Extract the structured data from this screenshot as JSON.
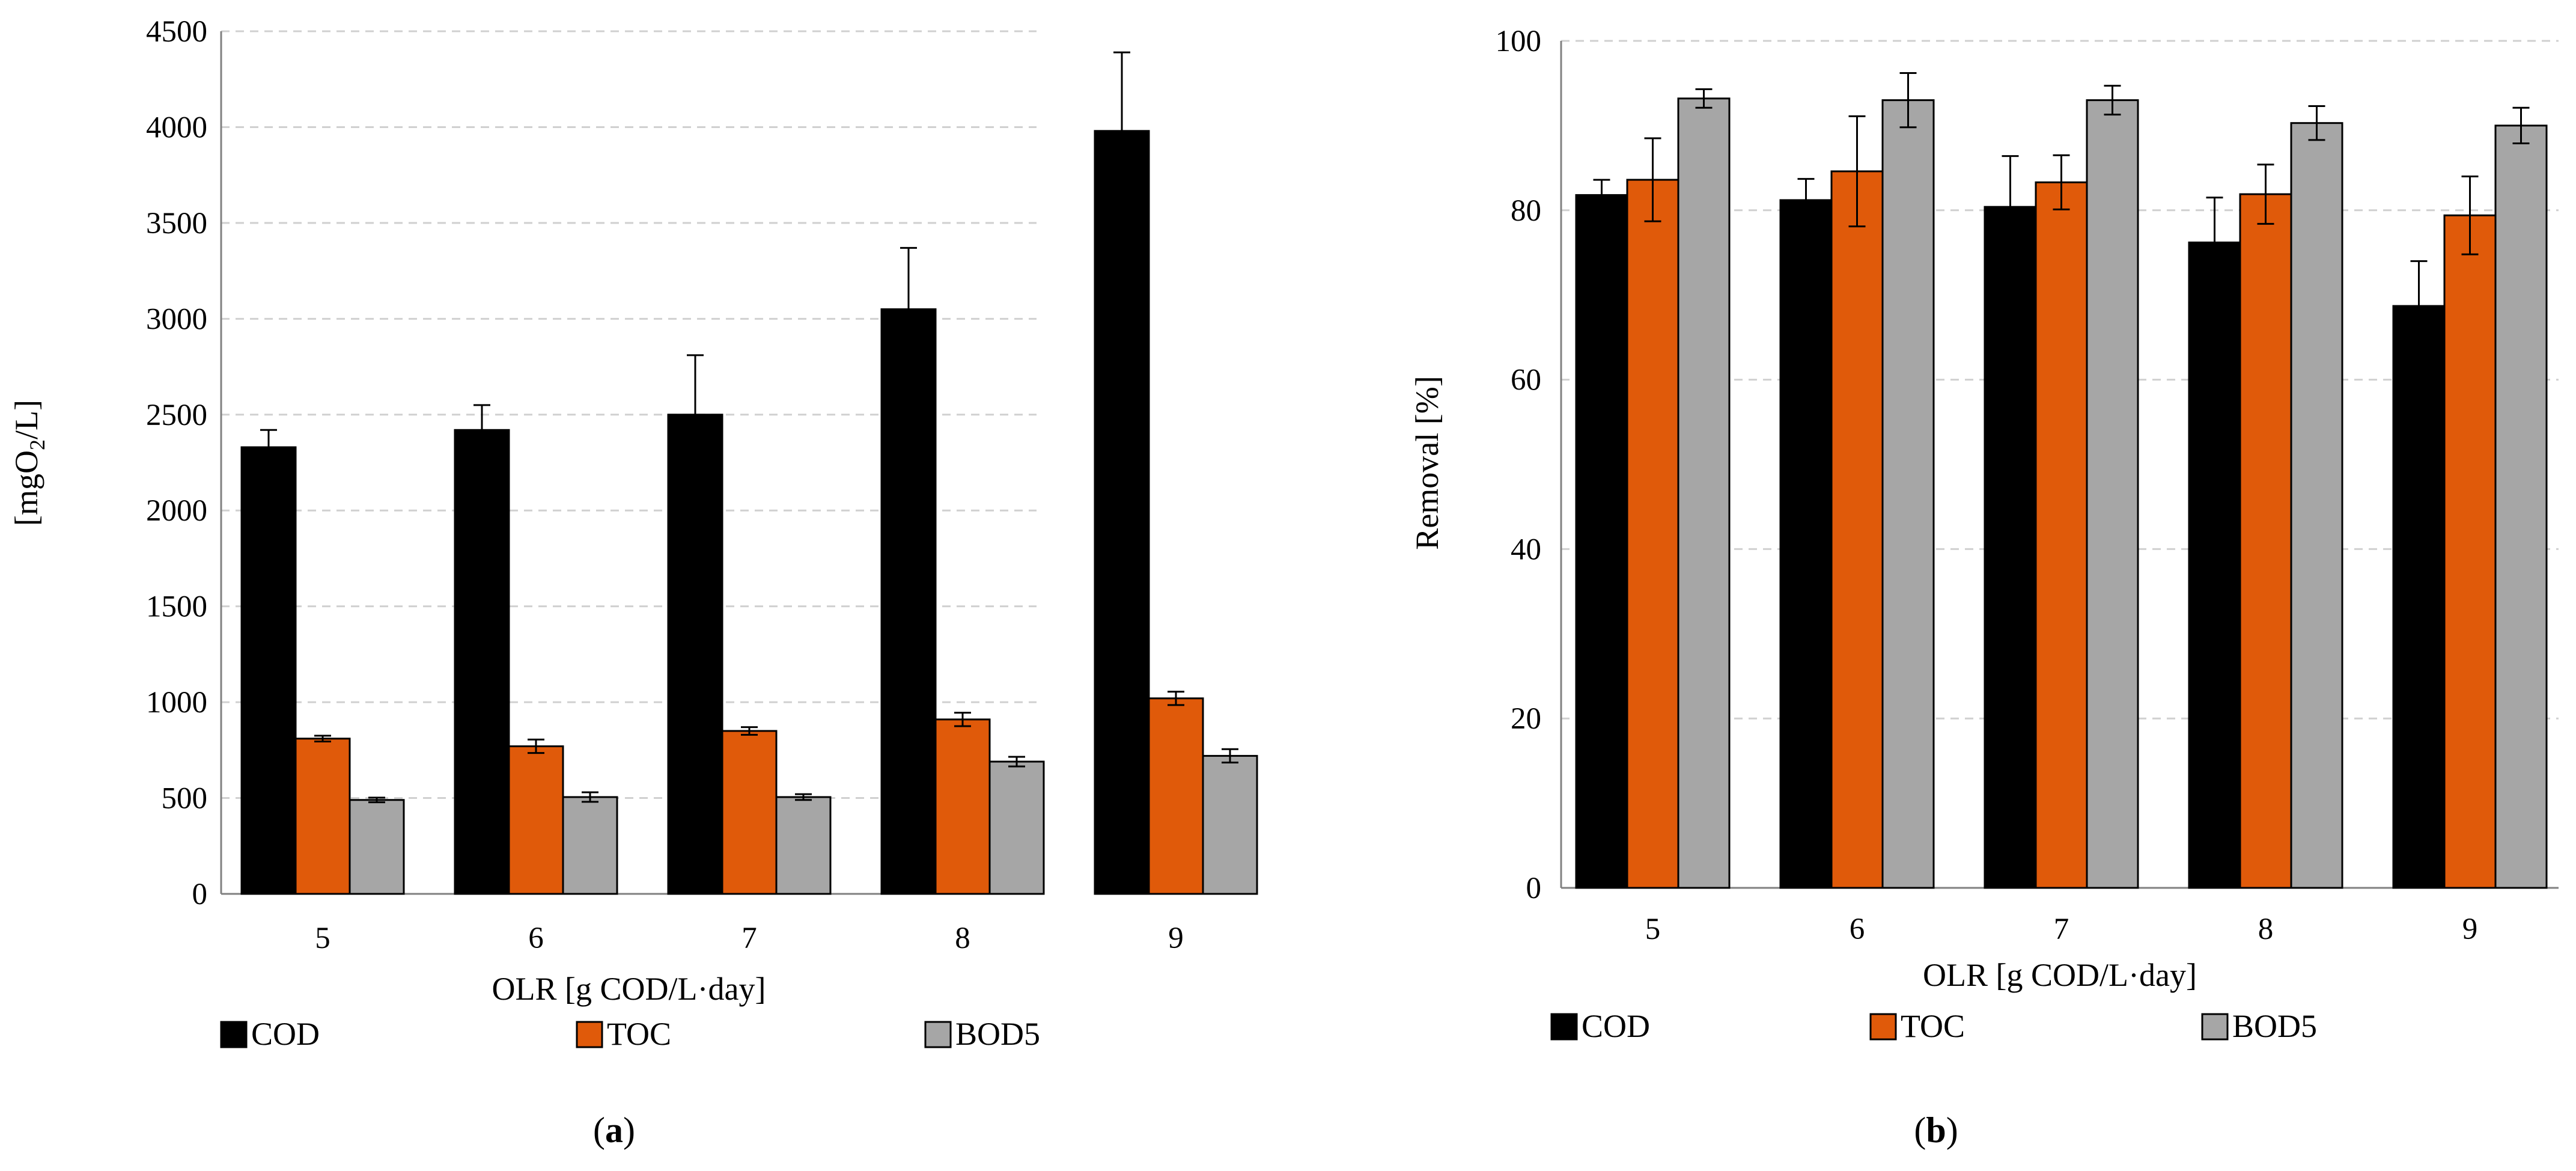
{
  "chart_data": [
    {
      "type": "bar",
      "panel_label": "a",
      "categories": [
        "5",
        "6",
        "7",
        "8",
        "9"
      ],
      "xlabel": "OLR [g COD/L·day]",
      "ylabel_main": "[mgO",
      "ylabel_sub": "2",
      "ylabel_tail": "/L]",
      "ylim": [
        0,
        4500
      ],
      "yticks": [
        0,
        500,
        1000,
        1500,
        2000,
        2500,
        3000,
        3500,
        4000,
        4500
      ],
      "grid": true,
      "legend_position": "bottom",
      "series": [
        {
          "name": "COD",
          "color": "#000000",
          "values": [
            2330,
            2420,
            2500,
            3050,
            3980
          ],
          "errors": [
            90,
            130,
            310,
            320,
            410
          ]
        },
        {
          "name": "TOC",
          "color": "#e05a0a",
          "values": [
            810,
            770,
            850,
            910,
            1020
          ],
          "errors": [
            15,
            35,
            20,
            35,
            35
          ]
        },
        {
          "name": "BOD5",
          "color": "#a6a6a6",
          "values": [
            490,
            505,
            505,
            690,
            720
          ],
          "errors": [
            12,
            25,
            15,
            25,
            35
          ]
        }
      ]
    },
    {
      "type": "bar",
      "panel_label": "b",
      "categories": [
        "5",
        "6",
        "7",
        "8",
        "9"
      ],
      "xlabel": "OLR [g COD/L·day]",
      "ylabel_main": "Removal [%]",
      "ylim": [
        0,
        100
      ],
      "yticks": [
        0,
        20,
        40,
        60,
        80,
        100
      ],
      "grid": true,
      "legend_position": "bottom",
      "series": [
        {
          "name": "COD",
          "color": "#000000",
          "values": [
            81.8,
            81.2,
            80.4,
            76.2,
            68.7
          ],
          "errors": [
            1.8,
            2.5,
            6.0,
            5.3,
            5.3
          ]
        },
        {
          "name": "TOC",
          "color": "#e05a0a",
          "values": [
            83.6,
            84.6,
            83.3,
            81.9,
            79.4
          ],
          "errors": [
            4.9,
            6.5,
            3.2,
            3.5,
            4.6
          ]
        },
        {
          "name": "BOD5",
          "color": "#a6a6a6",
          "values": [
            93.2,
            93.0,
            93.0,
            90.3,
            90.0
          ],
          "errors": [
            1.1,
            3.2,
            1.7,
            2.0,
            2.1
          ]
        }
      ]
    }
  ]
}
